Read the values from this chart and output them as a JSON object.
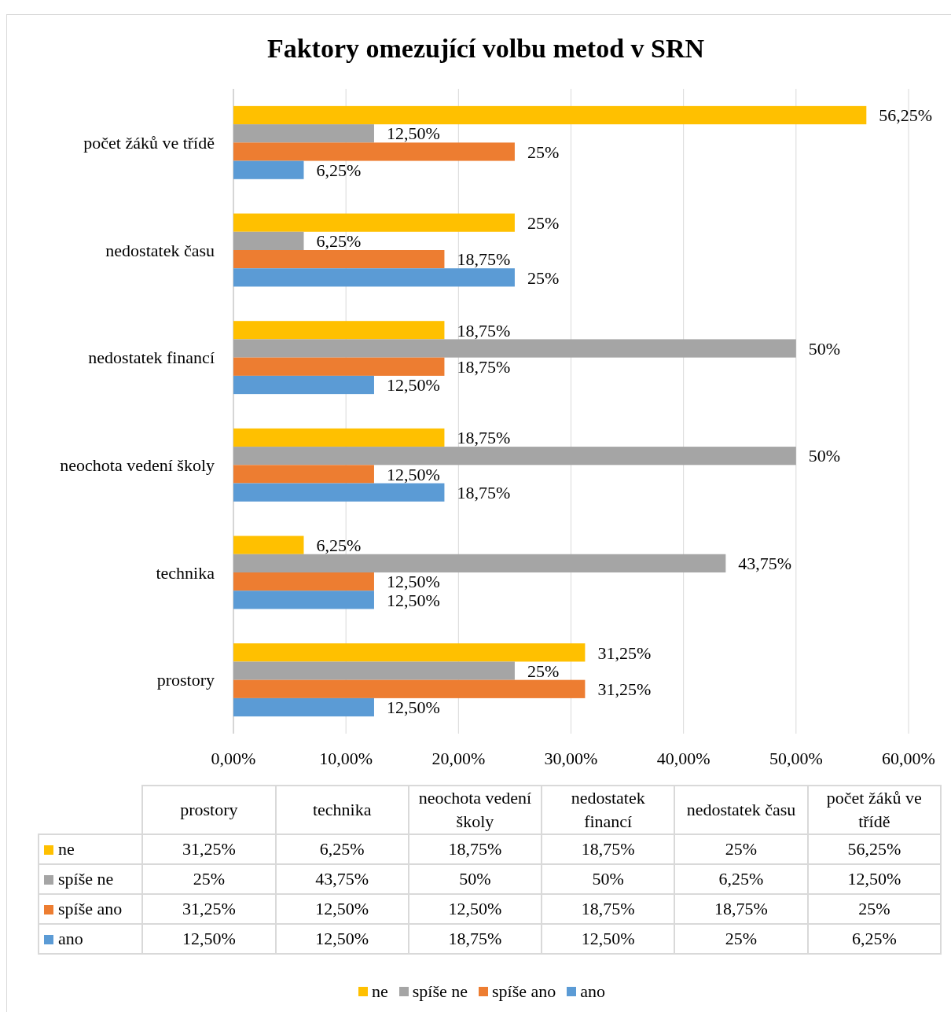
{
  "chart_data": {
    "type": "bar",
    "orientation": "horizontal",
    "title": "Faktory omezující volbu metod v SRN",
    "categories": [
      "počet žáků ve třídě",
      "nedostatek času",
      "nedostatek financí",
      "neochota vedení školy",
      "technika",
      "prostory"
    ],
    "series": [
      {
        "name": "ne",
        "color": "#ffc000",
        "values": [
          56.25,
          25,
          18.75,
          18.75,
          6.25,
          31.25
        ],
        "value_labels": [
          "56,25%",
          "25%",
          "18,75%",
          "18,75%",
          "6,25%",
          "31,25%"
        ]
      },
      {
        "name": "spíše ne",
        "color": "#a5a5a5",
        "values": [
          12.5,
          6.25,
          50,
          50,
          43.75,
          25
        ],
        "value_labels": [
          "12,50%",
          "6,25%",
          "50%",
          "50%",
          "43,75%",
          "25%"
        ]
      },
      {
        "name": "spíše ano",
        "color": "#ed7d31",
        "values": [
          25,
          18.75,
          18.75,
          12.5,
          12.5,
          31.25
        ],
        "value_labels": [
          "25%",
          "18,75%",
          "18,75%",
          "12,50%",
          "12,50%",
          "31,25%"
        ]
      },
      {
        "name": "ano",
        "color": "#5b9bd5",
        "values": [
          6.25,
          25,
          12.5,
          18.75,
          12.5,
          12.5
        ],
        "value_labels": [
          "6,25%",
          "25%",
          "12,50%",
          "18,75%",
          "12,50%",
          "12,50%"
        ]
      }
    ],
    "xlim": [
      0,
      60
    ],
    "xticks": [
      {
        "value": 0,
        "label": "0,00%"
      },
      {
        "value": 10,
        "label": "10,00%"
      },
      {
        "value": 20,
        "label": "20,00%"
      },
      {
        "value": 30,
        "label": "30,00%"
      },
      {
        "value": 40,
        "label": "40,00%"
      },
      {
        "value": 50,
        "label": "50,00%"
      },
      {
        "value": 60,
        "label": "60,00%"
      }
    ],
    "grid": "x",
    "legend": "bottom"
  }
}
